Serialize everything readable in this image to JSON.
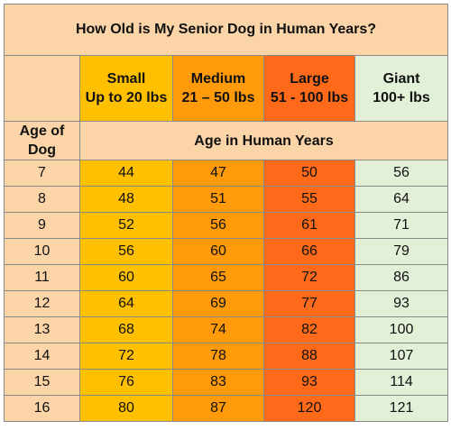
{
  "title": "How Old is My Senior Dog in Human Years?",
  "age_header": "Age of Dog",
  "sub_header": "Age in Human Years",
  "size_columns": [
    {
      "name": "Small",
      "range": "Up to 20 lbs"
    },
    {
      "name": "Medium",
      "range": "21 – 50 lbs"
    },
    {
      "name": "Large",
      "range": "51 - 100 lbs"
    },
    {
      "name": "Giant",
      "range": "100+ lbs"
    }
  ],
  "colors": {
    "peach": "#fbd4a8",
    "small": "#ffc000",
    "medium": "#ff9a0a",
    "large": "#ff6a1a",
    "giant": "#e3f0d8",
    "border": "#8a8a8a"
  },
  "rows": [
    {
      "age": "7",
      "small": "44",
      "medium": "47",
      "large": "50",
      "giant": "56"
    },
    {
      "age": "8",
      "small": "48",
      "medium": "51",
      "large": "55",
      "giant": "64"
    },
    {
      "age": "9",
      "small": "52",
      "medium": "56",
      "large": "61",
      "giant": "71"
    },
    {
      "age": "10",
      "small": "56",
      "medium": "60",
      "large": "66",
      "giant": "79"
    },
    {
      "age": "11",
      "small": "60",
      "medium": "65",
      "large": "72",
      "giant": "86"
    },
    {
      "age": "12",
      "small": "64",
      "medium": "69",
      "large": "77",
      "giant": "93"
    },
    {
      "age": "13",
      "small": "68",
      "medium": "74",
      "large": "82",
      "giant": "100"
    },
    {
      "age": "14",
      "small": "72",
      "medium": "78",
      "large": "88",
      "giant": "107"
    },
    {
      "age": "15",
      "small": "76",
      "medium": "83",
      "large": "93",
      "giant": "114"
    },
    {
      "age": "16",
      "small": "80",
      "medium": "87",
      "large": "120",
      "giant": "121"
    }
  ]
}
